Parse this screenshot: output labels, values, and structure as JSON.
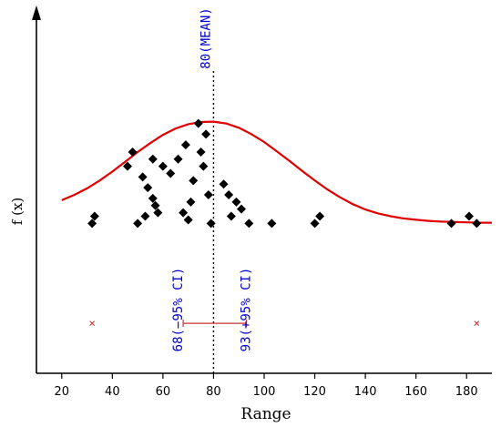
{
  "chart_data": {
    "type": "scatter",
    "title": "",
    "xlabel": "Range",
    "ylabel": "f (x)",
    "xlim": [
      10,
      190
    ],
    "ylim": [
      0,
      1
    ],
    "xticks": [
      20,
      40,
      60,
      80,
      100,
      120,
      140,
      160,
      180
    ],
    "grid": false,
    "legend": "none",
    "colors": {
      "points": "#000000",
      "curve": "#e00000",
      "annotation_text": "#0000cc",
      "mean_line": "#000000",
      "ci_segment": "#cc3333",
      "outlier_marker": "#cc3333"
    },
    "points": [
      {
        "x": 32,
        "y": 0.42
      },
      {
        "x": 33,
        "y": 0.44
      },
      {
        "x": 46,
        "y": 0.58
      },
      {
        "x": 48,
        "y": 0.62
      },
      {
        "x": 50,
        "y": 0.42
      },
      {
        "x": 52,
        "y": 0.55
      },
      {
        "x": 53,
        "y": 0.44
      },
      {
        "x": 54,
        "y": 0.52
      },
      {
        "x": 56,
        "y": 0.6
      },
      {
        "x": 56,
        "y": 0.49
      },
      {
        "x": 57,
        "y": 0.47
      },
      {
        "x": 58,
        "y": 0.45
      },
      {
        "x": 60,
        "y": 0.58
      },
      {
        "x": 63,
        "y": 0.56
      },
      {
        "x": 66,
        "y": 0.6
      },
      {
        "x": 68,
        "y": 0.45
      },
      {
        "x": 69,
        "y": 0.64
      },
      {
        "x": 70,
        "y": 0.43
      },
      {
        "x": 71,
        "y": 0.48
      },
      {
        "x": 72,
        "y": 0.54
      },
      {
        "x": 74,
        "y": 0.7
      },
      {
        "x": 75,
        "y": 0.62
      },
      {
        "x": 76,
        "y": 0.58
      },
      {
        "x": 77,
        "y": 0.67
      },
      {
        "x": 78,
        "y": 0.5
      },
      {
        "x": 79,
        "y": 0.42
      },
      {
        "x": 84,
        "y": 0.53
      },
      {
        "x": 86,
        "y": 0.5
      },
      {
        "x": 87,
        "y": 0.44
      },
      {
        "x": 89,
        "y": 0.48
      },
      {
        "x": 91,
        "y": 0.46
      },
      {
        "x": 94,
        "y": 0.42
      },
      {
        "x": 103,
        "y": 0.42
      },
      {
        "x": 120,
        "y": 0.42
      },
      {
        "x": 122,
        "y": 0.44
      },
      {
        "x": 174,
        "y": 0.42
      },
      {
        "x": 181,
        "y": 0.44
      },
      {
        "x": 184,
        "y": 0.42
      }
    ],
    "curve": {
      "x": [
        20,
        25,
        30,
        35,
        40,
        45,
        50,
        55,
        60,
        65,
        70,
        75,
        80,
        85,
        90,
        95,
        100,
        105,
        110,
        115,
        120,
        125,
        130,
        135,
        140,
        145,
        150,
        155,
        160,
        165,
        170,
        175,
        180,
        185,
        190
      ],
      "y": [
        0.485,
        0.5,
        0.518,
        0.54,
        0.565,
        0.592,
        0.62,
        0.645,
        0.668,
        0.686,
        0.698,
        0.704,
        0.705,
        0.7,
        0.688,
        0.67,
        0.648,
        0.622,
        0.595,
        0.567,
        0.54,
        0.515,
        0.493,
        0.474,
        0.459,
        0.448,
        0.44,
        0.434,
        0.43,
        0.427,
        0.425,
        0.424,
        0.423,
        0.422,
        0.422
      ]
    },
    "mean": 80,
    "ci": [
      68,
      93
    ],
    "ci_y": 0.14,
    "ci_markers": [
      {
        "x": 32,
        "y": 0.14
      },
      {
        "x": 184,
        "y": 0.14
      }
    ],
    "annotations": {
      "mean": "80(MEAN)",
      "ci_low": "68(−95% CI)",
      "ci_high": "93(+95% CI)"
    }
  }
}
